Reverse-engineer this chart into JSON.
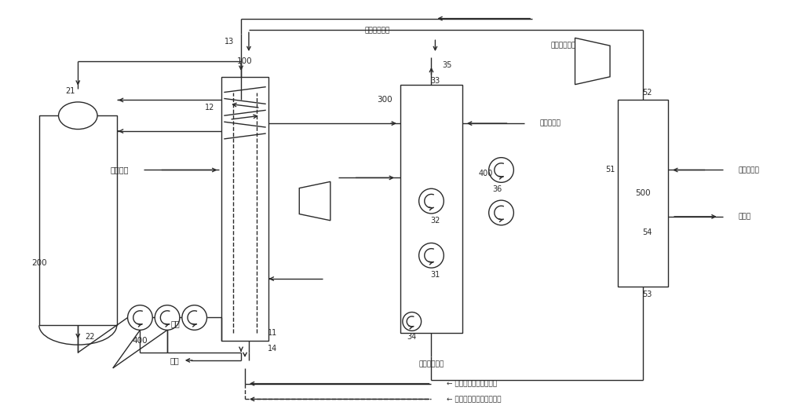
{
  "bg_color": "#ffffff",
  "line_color": "#2a2a2a",
  "figsize": [
    10.0,
    5.26
  ],
  "dpi": 100,
  "xlim": [
    0,
    100
  ],
  "ylim": [
    0,
    52.6
  ]
}
